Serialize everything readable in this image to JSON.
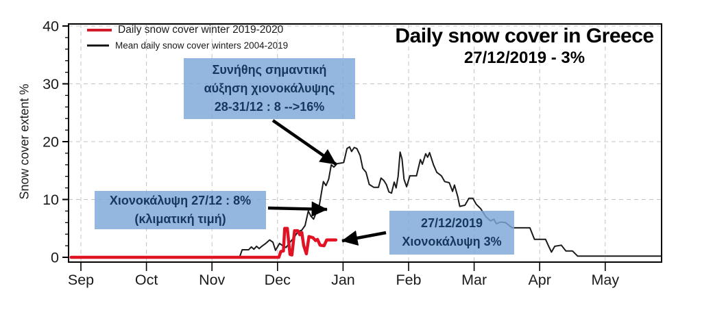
{
  "title": "Daily snow cover in Greece",
  "subtitle": "27/12/2019 - 3%",
  "y_axis_label": "Snow cover extent %",
  "legend": [
    {
      "label": "Daily snow cover winter 2019-2020",
      "color": "#d21a2a"
    },
    {
      "label": "Mean daily snow cover winters 2004-2019",
      "color": "#1a1a1a"
    }
  ],
  "annotations": [
    {
      "id": "usual-increase",
      "text": "Συνήθης σημαντική\nαύξηση χιονοκάλυψης\n28-31/12 : 8 -->16%"
    },
    {
      "id": "climatic-value",
      "text": "Χιονοκάλυψη 27/12 : 8%\n(κλιματική τιμή)"
    },
    {
      "id": "current-value",
      "text": "27/12/2019\nΧιονοκάλυψη 3%"
    }
  ],
  "colors": {
    "annotation_bg": "#7da7d9",
    "annotation_text": "#17375d",
    "mean_line": "#1a1a1a",
    "current_line": "#e01224",
    "grid": "#c3c3c3",
    "axis": "#000000"
  },
  "chart_data": {
    "type": "line",
    "title": "Daily snow cover in Greece",
    "subtitle": "27/12/2019 - 3%",
    "ylabel": "Snow cover extent %",
    "ylim": [
      -1,
      41
    ],
    "grid": "dashed, vertical at each month tick and horizontal at 10/20/30/40",
    "legend_position": "top-left inside plot",
    "x_axis": {
      "unit": "months after the Sep tick (0 = Sep, 1 = Oct, ... 8 = May)",
      "tick_labels": [
        "Sep",
        "Oct",
        "Nov",
        "Dec",
        "Jan",
        "Feb",
        "Mar",
        "Apr",
        "May"
      ]
    },
    "y_axis": {
      "ticks": [
        0,
        10,
        20,
        30,
        40
      ],
      "minor_tick_step": 2
    },
    "series": [
      {
        "name": "Mean daily snow cover winters 2004-2019",
        "color": "#1a1a1a",
        "width": 2,
        "points": [
          [
            2.42,
            0.0
          ],
          [
            2.46,
            1.3
          ],
          [
            2.56,
            1.3
          ],
          [
            2.6,
            1.8
          ],
          [
            2.64,
            1.4
          ],
          [
            2.68,
            1.9
          ],
          [
            2.72,
            1.5
          ],
          [
            2.76,
            1.9
          ],
          [
            2.82,
            2.4
          ],
          [
            2.88,
            3.0
          ],
          [
            2.93,
            2.6
          ],
          [
            2.97,
            1.2
          ],
          [
            3.03,
            2.4
          ],
          [
            3.08,
            2.0
          ],
          [
            3.13,
            1.7
          ],
          [
            3.19,
            2.6
          ],
          [
            3.25,
            3.4
          ],
          [
            3.31,
            4.4
          ],
          [
            3.37,
            4.7
          ],
          [
            3.42,
            5.5
          ],
          [
            3.47,
            8.0
          ],
          [
            3.51,
            7.1
          ],
          [
            3.55,
            6.6
          ],
          [
            3.59,
            7.7
          ],
          [
            3.63,
            8.4
          ],
          [
            3.67,
            11.2
          ],
          [
            3.7,
            13.1
          ],
          [
            3.74,
            12.4
          ],
          [
            3.78,
            13.5
          ],
          [
            3.82,
            16.0
          ],
          [
            3.86,
            15.6
          ],
          [
            3.91,
            16.2
          ],
          [
            3.97,
            16.3
          ],
          [
            4.01,
            16.4
          ],
          [
            4.06,
            18.8
          ],
          [
            4.1,
            19.1
          ],
          [
            4.13,
            18.3
          ],
          [
            4.17,
            19.0
          ],
          [
            4.21,
            18.8
          ],
          [
            4.26,
            17.6
          ],
          [
            4.3,
            15.4
          ],
          [
            4.35,
            14.7
          ],
          [
            4.4,
            12.6
          ],
          [
            4.47,
            12.1
          ],
          [
            4.54,
            12.1
          ],
          [
            4.58,
            13.7
          ],
          [
            4.62,
            13.3
          ],
          [
            4.66,
            12.6
          ],
          [
            4.7,
            11.3
          ],
          [
            4.74,
            11.1
          ],
          [
            4.78,
            13.0
          ],
          [
            4.81,
            12.0
          ],
          [
            4.84,
            14.0
          ],
          [
            4.87,
            18.2
          ],
          [
            4.9,
            17.0
          ],
          [
            4.93,
            13.5
          ],
          [
            4.97,
            12.2
          ],
          [
            5.02,
            14.1
          ],
          [
            5.12,
            14.1
          ],
          [
            5.18,
            16.9
          ],
          [
            5.21,
            16.1
          ],
          [
            5.26,
            17.9
          ],
          [
            5.29,
            17.3
          ],
          [
            5.32,
            18.1
          ],
          [
            5.38,
            16.0
          ],
          [
            5.43,
            14.7
          ],
          [
            5.5,
            14.1
          ],
          [
            5.55,
            13.1
          ],
          [
            5.62,
            12.9
          ],
          [
            5.67,
            11.4
          ],
          [
            5.7,
            12.5
          ],
          [
            5.75,
            10.5
          ],
          [
            5.78,
            8.8
          ],
          [
            5.86,
            9.0
          ],
          [
            5.92,
            10.2
          ],
          [
            5.98,
            10.2
          ],
          [
            6.03,
            9.2
          ],
          [
            6.1,
            8.4
          ],
          [
            6.18,
            7.0
          ],
          [
            6.25,
            6.3
          ],
          [
            6.3,
            6.6
          ],
          [
            6.34,
            5.8
          ],
          [
            6.4,
            6.1
          ],
          [
            6.48,
            6.0
          ],
          [
            6.58,
            5.1
          ],
          [
            6.85,
            5.1
          ],
          [
            6.92,
            3.1
          ],
          [
            7.09,
            3.1
          ],
          [
            7.13,
            2.1
          ],
          [
            7.18,
            0.9
          ],
          [
            7.23,
            1.9
          ],
          [
            7.33,
            2.1
          ],
          [
            7.4,
            1.1
          ],
          [
            7.5,
            1.1
          ],
          [
            7.58,
            0.2
          ],
          [
            8.86,
            0.2
          ]
        ]
      },
      {
        "name": "Daily snow cover winter 2019-2020",
        "color": "#e01224",
        "width": 4.5,
        "points": [
          [
            -0.15,
            0.0
          ],
          [
            3.02,
            0.0
          ],
          [
            3.05,
            1.0
          ],
          [
            3.09,
            1.1
          ],
          [
            3.11,
            5.0
          ],
          [
            3.15,
            5.0
          ],
          [
            3.19,
            0.5
          ],
          [
            3.22,
            0.4
          ],
          [
            3.26,
            4.6
          ],
          [
            3.31,
            4.6
          ],
          [
            3.34,
            3.9
          ],
          [
            3.37,
            4.3
          ],
          [
            3.4,
            2.0
          ],
          [
            3.44,
            0.6
          ],
          [
            3.48,
            3.6
          ],
          [
            3.54,
            3.4
          ],
          [
            3.58,
            2.9
          ],
          [
            3.61,
            3.1
          ],
          [
            3.65,
            2.1
          ],
          [
            3.71,
            2.0
          ],
          [
            3.75,
            3.0
          ],
          [
            3.89,
            3.0
          ]
        ]
      }
    ]
  }
}
